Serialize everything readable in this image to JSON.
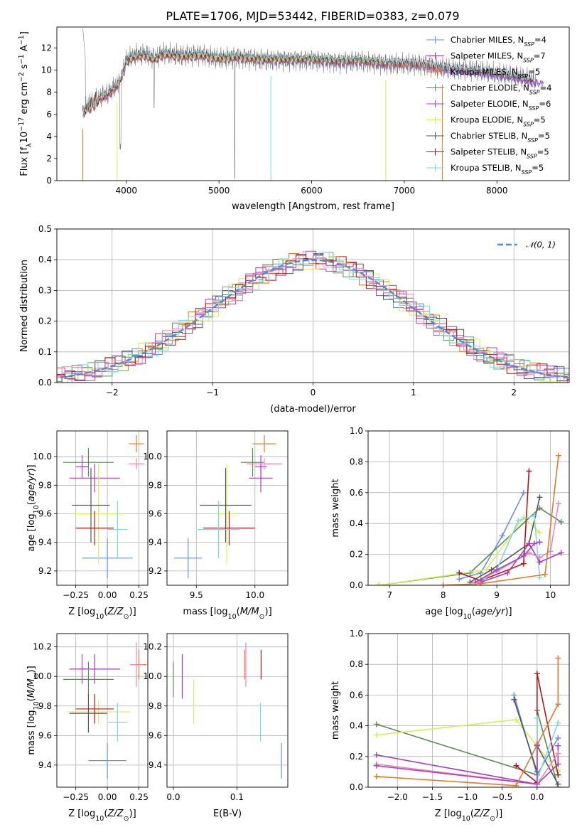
{
  "figure": {
    "title": "PLATE=1706, MJD=53442, FIBERID=0383, z=0.079"
  },
  "palette": {
    "Chabrier MILES": "#6a8fdc",
    "Salpeter MILES": "#a13db3",
    "Kroupa MILES": "#e07b2a",
    "Chabrier ELODIE": "#5a8a5a",
    "Salpeter ELODIE": "#b040c0",
    "Kroupa ELODIE": "#d6ee5a",
    "Chabrier STELIB": "#555555",
    "Salpeter STELIB": "#b01818",
    "Kroupa STELIB": "#80d8e0",
    "pink": "#e888b8",
    "grid": "#b0b0b0",
    "data": "#808080"
  },
  "chart_data": [
    {
      "id": "spectrum",
      "type": "line",
      "xlabel": "wavelength [Angstrom, rest frame]",
      "ylabel": "Flux [f_λ10^-17 erg cm^-2 s^-1 A^-1]",
      "xlim": [
        3250,
        8780
      ],
      "ylim": [
        0,
        13.9
      ],
      "xticks": [
        4000,
        5000,
        6000,
        7000,
        8000
      ],
      "yticks": [
        0,
        2,
        4,
        6,
        8,
        10,
        12
      ],
      "grid": false,
      "legend_position": "top-right",
      "legend": [
        {
          "label": "Chabrier MILES, N",
          "sub": "SSP",
          "tail": "=4"
        },
        {
          "label": "Salpeter MILES, N",
          "sub": "SSP",
          "tail": "=7"
        },
        {
          "label": "Kroupa MILES, N",
          "sub": "SSP",
          "tail": "=5"
        },
        {
          "label": "Chabrier ELODIE, N",
          "sub": "SSP",
          "tail": "=4"
        },
        {
          "label": "Salpeter ELODIE, N",
          "sub": "SSP",
          "tail": "=6"
        },
        {
          "label": "Kroupa ELODIE, N",
          "sub": "SSP",
          "tail": "=5"
        },
        {
          "label": "Chabrier STELIB, N",
          "sub": "SSP",
          "tail": "=5"
        },
        {
          "label": "Salpeter STELIB, N",
          "sub": "SSP",
          "tail": "=5"
        },
        {
          "label": "Kroupa STELIB, N",
          "sub": "SSP",
          "tail": "=5"
        }
      ],
      "series": [
        {
          "name": "Chabrier MILES, NSSP=4",
          "color": "#6a8fdc",
          "range": [
            3700,
            8500
          ]
        },
        {
          "name": "Salpeter MILES, NSSP=7",
          "color": "#a13db3",
          "range": [
            3700,
            8500
          ]
        },
        {
          "name": "Kroupa MILES, NSSP=5",
          "color": "#e07b2a",
          "range": [
            3530,
            7410
          ]
        },
        {
          "name": "Chabrier ELODIE, NSSP=4",
          "color": "#5a8a5a",
          "range": [
            3900,
            6800
          ]
        },
        {
          "name": "Salpeter ELODIE, NSSP=6",
          "color": "#b040c0",
          "range": [
            3900,
            6800
          ]
        },
        {
          "name": "Kroupa ELODIE, NSSP=5",
          "color": "#d6ee5a",
          "range": [
            3900,
            6800
          ]
        },
        {
          "name": "Chabrier STELIB, NSSP=5",
          "color": "#555555",
          "range": [
            3530,
            8400
          ]
        },
        {
          "name": "Salpeter STELIB, NSSP=5",
          "color": "#b01818",
          "range": [
            3530,
            8400
          ]
        },
        {
          "name": "Kroupa STELIB, NSSP=5",
          "color": "#80d8e0",
          "range": [
            3530,
            8400
          ]
        }
      ],
      "spectrum_shape": {
        "x": [
          3530,
          3600,
          3700,
          3800,
          3900,
          3950,
          4000,
          4100,
          4200,
          4300,
          4400,
          4600,
          4800,
          5000,
          5200,
          5500,
          5800,
          6000,
          6300,
          6500,
          6800,
          7000,
          7200,
          7400,
          7600,
          7800,
          8000,
          8200,
          8400
        ],
        "y": [
          6.2,
          6.8,
          7.4,
          7.8,
          8.6,
          9.4,
          10.9,
          11.3,
          11.4,
          11.0,
          11.5,
          11.3,
          11.4,
          11.1,
          11.2,
          11.0,
          11.0,
          11.0,
          10.8,
          10.9,
          10.6,
          10.6,
          10.5,
          10.2,
          10.0,
          9.9,
          9.6,
          9.4,
          9.0
        ]
      }
    },
    {
      "id": "residuals",
      "type": "line",
      "xlabel": "(data-model)/error",
      "ylabel": "Normed distribution",
      "xlim": [
        -2.55,
        2.55
      ],
      "ylim": [
        0,
        0.5
      ],
      "xticks": [
        -2,
        -1,
        0,
        1,
        2
      ],
      "xtick_labels": [
        "−2",
        "−1",
        "0",
        "1",
        "2"
      ],
      "yticks": [
        0,
        0.1,
        0.2,
        0.3,
        0.4,
        0.5
      ],
      "ytick_labels": [
        "0.0",
        "0.1",
        "0.2",
        "0.3",
        "0.4",
        "0.5"
      ],
      "grid": true,
      "legend_position": "top-right",
      "legend": [
        "𝒩(0, 1)"
      ],
      "reference_curve": {
        "name": "𝒩(0, 1)",
        "mean": 0,
        "sigma": 1,
        "color": "#5b86d6"
      },
      "bin_width": 0.1
    },
    {
      "id": "age_vs_Z",
      "type": "scatter",
      "xlabel": "Z [log10(Z/Z⊙)]",
      "ylabel": "age [log10(age/yr)]",
      "xlim": [
        -0.4,
        0.32
      ],
      "ylim": [
        9.1,
        10.18
      ],
      "xticks": [
        -0.25,
        0.0,
        0.25
      ],
      "xtick_labels": [
        "−0.25",
        "0.00",
        "0.25"
      ],
      "yticks": [
        9.2,
        9.4,
        9.6,
        9.8,
        10.0
      ],
      "ytick_labels": [
        "9.2",
        "9.4",
        "9.6",
        "9.8",
        "10.0"
      ],
      "grid": true,
      "errorbars": [
        {
          "color": "#6a8fdc",
          "x": 0.0,
          "xerr": 0.2,
          "y": 9.29,
          "yerr": 0.14
        },
        {
          "color": "#a13db3",
          "x": -0.1,
          "xerr": 0.2,
          "y": 9.85,
          "yerr": 0.1
        },
        {
          "color": "#e07b2a",
          "x": 0.23,
          "xerr": 0.06,
          "y": 10.09,
          "yerr": 0.06
        },
        {
          "color": "#5a8a5a",
          "x": -0.15,
          "xerr": 0.2,
          "y": 9.96,
          "yerr": 0.1
        },
        {
          "color": "#b040c0",
          "x": -0.2,
          "xerr": 0.05,
          "y": 9.93,
          "yerr": 0.08
        },
        {
          "color": "#d6ee5a",
          "x": -0.07,
          "xerr": 0.2,
          "y": 9.6,
          "yerr": 0.35
        },
        {
          "color": "#555555",
          "x": -0.13,
          "xerr": 0.15,
          "y": 9.66,
          "yerr": 0.26
        },
        {
          "color": "#b01818",
          "x": -0.1,
          "xerr": 0.15,
          "y": 9.5,
          "yerr": 0.12
        },
        {
          "color": "#80d8e0",
          "x": 0.08,
          "xerr": 0.08,
          "y": 9.49,
          "yerr": 0.2
        },
        {
          "color": "#e888b8",
          "x": 0.23,
          "xerr": 0.06,
          "y": 9.95,
          "yerr": 0.04
        }
      ]
    },
    {
      "id": "age_vs_mass",
      "type": "scatter",
      "xlabel": "mass [log10(M/M⊙)]",
      "ylabel": "",
      "xlim": [
        9.25,
        10.28
      ],
      "ylim": [
        9.1,
        10.18
      ],
      "xticks": [
        9.5,
        10.0
      ],
      "xtick_labels": [
        "9.5",
        "10.0"
      ],
      "yticks": [
        9.2,
        9.4,
        9.6,
        9.8,
        10.0
      ],
      "ytick_labels": [
        "9.2",
        "9.4",
        "9.6",
        "9.8",
        "10.0"
      ],
      "grid": true,
      "errorbars": [
        {
          "color": "#6a8fdc",
          "x": 9.43,
          "xerr": 0.12,
          "y": 9.29,
          "yerr": 0.14
        },
        {
          "color": "#a13db3",
          "x": 10.05,
          "xerr": 0.1,
          "y": 9.85,
          "yerr": 0.1
        },
        {
          "color": "#e07b2a",
          "x": 10.08,
          "xerr": 0.1,
          "y": 10.09,
          "yerr": 0.06
        },
        {
          "color": "#5a8a5a",
          "x": 9.98,
          "xerr": 0.1,
          "y": 9.96,
          "yerr": 0.1
        },
        {
          "color": "#b040c0",
          "x": 10.05,
          "xerr": 0.05,
          "y": 9.93,
          "yerr": 0.08
        },
        {
          "color": "#d6ee5a",
          "x": 9.76,
          "xerr": 0.08,
          "y": 9.6,
          "yerr": 0.35
        },
        {
          "color": "#555555",
          "x": 9.75,
          "xerr": 0.22,
          "y": 9.66,
          "yerr": 0.26
        },
        {
          "color": "#b01818",
          "x": 9.78,
          "xerr": 0.22,
          "y": 9.5,
          "yerr": 0.12
        },
        {
          "color": "#80d8e0",
          "x": 9.69,
          "xerr": 0.18,
          "y": 9.49,
          "yerr": 0.2
        },
        {
          "color": "#e888b8",
          "x": 10.08,
          "xerr": 0.15,
          "y": 9.95,
          "yerr": 0.04
        }
      ]
    },
    {
      "id": "weight_vs_age",
      "type": "line",
      "xlabel": "age [log10(age/yr)]",
      "ylabel": "mass weight",
      "xlim": [
        6.6,
        10.35
      ],
      "ylim": [
        0,
        1.0
      ],
      "xticks": [
        7,
        8,
        9,
        10
      ],
      "xtick_labels": [
        "7",
        "8",
        "9",
        "10"
      ],
      "yticks": [
        0,
        0.2,
        0.4,
        0.6,
        0.8,
        1.0
      ],
      "ytick_labels": [
        "0.0",
        "0.2",
        "0.4",
        "0.6",
        "0.8",
        "1.0"
      ],
      "grid": true,
      "series": [
        {
          "color": "#6a8fdc",
          "x": [
            8.3,
            8.7,
            9.1,
            9.5
          ],
          "y": [
            0.04,
            0.08,
            0.32,
            0.6
          ]
        },
        {
          "color": "#5a8a5a",
          "x": [
            6.8,
            8.5,
            9.8,
            10.2
          ],
          "y": [
            0.0,
            0.08,
            0.5,
            0.41
          ]
        },
        {
          "color": "#d6ee5a",
          "x": [
            6.8,
            8.8,
            9.5,
            9.8
          ],
          "y": [
            0.0,
            0.1,
            0.44,
            0.34
          ]
        },
        {
          "color": "#555555",
          "x": [
            8.5,
            8.9,
            9.6,
            9.8
          ],
          "y": [
            0.02,
            0.1,
            0.27,
            0.57
          ]
        },
        {
          "color": "#b01818",
          "x": [
            8.3,
            8.7,
            9.5,
            9.6
          ],
          "y": [
            0.08,
            0.03,
            0.14,
            0.74
          ]
        },
        {
          "color": "#80d8e0",
          "x": [
            8.7,
            9.0,
            9.4,
            9.7,
            9.8
          ],
          "y": [
            0.02,
            0.1,
            0.42,
            0.45,
            0.05
          ]
        },
        {
          "color": "#a13db3",
          "x": [
            8.7,
            9.2,
            9.6,
            9.8,
            10.2
          ],
          "y": [
            0.02,
            0.08,
            0.27,
            0.15,
            0.21
          ]
        },
        {
          "color": "#e888b8",
          "x": [
            8.6,
            9.0,
            9.6,
            9.8,
            10.0,
            10.15
          ],
          "y": [
            0.02,
            0.09,
            0.21,
            0.18,
            0.22,
            0.53
          ]
        },
        {
          "color": "#b040c0",
          "x": [
            8.6,
            9.0,
            9.5,
            9.7,
            9.8
          ],
          "y": [
            0.02,
            0.1,
            0.19,
            0.27,
            0.28
          ]
        },
        {
          "color": "#e07b2a",
          "x": [
            8.0,
            8.7,
            9.9,
            10.15
          ],
          "y": [
            0.0,
            0.01,
            0.07,
            0.84
          ]
        }
      ]
    },
    {
      "id": "mass_vs_Z",
      "type": "scatter",
      "xlabel": "Z [log10(Z/Z⊙)]",
      "ylabel": "mass [log10(M/M⊙)]",
      "xlim": [
        -0.4,
        0.32
      ],
      "ylim": [
        9.25,
        10.29
      ],
      "xticks": [
        -0.25,
        0.0,
        0.25
      ],
      "xtick_labels": [
        "−0.25",
        "0.00",
        "0.25"
      ],
      "yticks": [
        9.4,
        9.6,
        9.8,
        10.0,
        10.2
      ],
      "ytick_labels": [
        "9.4",
        "9.6",
        "9.8",
        "10.0",
        "10.2"
      ],
      "grid": true,
      "errorbars": [
        {
          "color": "#6a8fdc",
          "x": 0.0,
          "xerr": 0.15,
          "y": 9.43,
          "yerr": 0.12
        },
        {
          "color": "#a13db3",
          "x": -0.1,
          "xerr": 0.2,
          "y": 10.05,
          "yerr": 0.1
        },
        {
          "color": "#e07b2a",
          "x": 0.25,
          "xerr": 0.06,
          "y": 10.08,
          "yerr": 0.1
        },
        {
          "color": "#5a8a5a",
          "x": -0.15,
          "xerr": 0.2,
          "y": 9.98,
          "yerr": 0.12
        },
        {
          "color": "#b040c0",
          "x": -0.2,
          "xerr": 0.05,
          "y": 10.05,
          "yerr": 0.1
        },
        {
          "color": "#d6ee5a",
          "x": -0.07,
          "xerr": 0.25,
          "y": 9.76,
          "yerr": 0.08
        },
        {
          "color": "#555555",
          "x": -0.15,
          "xerr": 0.15,
          "y": 9.75,
          "yerr": 0.13
        },
        {
          "color": "#b01818",
          "x": -0.1,
          "xerr": 0.15,
          "y": 9.78,
          "yerr": 0.1
        },
        {
          "color": "#80d8e0",
          "x": 0.08,
          "xerr": 0.08,
          "y": 9.69,
          "yerr": 0.13
        },
        {
          "color": "#e888b8",
          "x": 0.23,
          "xerr": 0.05,
          "y": 10.08,
          "yerr": 0.15
        }
      ]
    },
    {
      "id": "mass_vs_EBV",
      "type": "scatter",
      "xlabel": "E(B-V)",
      "ylabel": "",
      "xlim": [
        -0.01,
        0.18
      ],
      "ylim": [
        9.25,
        10.29
      ],
      "xticks": [
        0.0,
        0.1
      ],
      "xtick_labels": [
        "0.0",
        "0.1"
      ],
      "yticks": [
        9.4,
        9.6,
        9.8,
        10.0,
        10.2
      ],
      "ytick_labels": [
        "9.4",
        "9.6",
        "9.8",
        "10.0",
        "10.2"
      ],
      "grid": true,
      "errorbars": [
        {
          "color": "#6a8fdc",
          "x": 0.17,
          "xerr": 0,
          "y": 9.43,
          "yerr": 0.12
        },
        {
          "color": "#a13db3",
          "x": 0.014,
          "xerr": 0,
          "y": 10.0,
          "yerr": 0.15
        },
        {
          "color": "#e07b2a",
          "x": 0.112,
          "xerr": 0,
          "y": 10.08,
          "yerr": 0.1
        },
        {
          "color": "#5a8a5a",
          "x": 0.0,
          "xerr": 0,
          "y": 9.98,
          "yerr": 0.12
        },
        {
          "color": "#d6ee5a",
          "x": 0.032,
          "xerr": 0,
          "y": 9.83,
          "yerr": 0.15
        },
        {
          "color": "#b01818",
          "x": 0.138,
          "xerr": 0,
          "y": 10.08,
          "yerr": 0.1
        },
        {
          "color": "#80d8e0",
          "x": 0.137,
          "xerr": 0,
          "y": 9.69,
          "yerr": 0.13
        },
        {
          "color": "#e888b8",
          "x": 0.114,
          "xerr": 0,
          "y": 10.08,
          "yerr": 0.15
        }
      ]
    },
    {
      "id": "weight_vs_Z",
      "type": "line",
      "xlabel": "Z [log10(Z/Z⊙)]",
      "ylabel": "mass weight",
      "xlim": [
        -2.42,
        0.46
      ],
      "ylim": [
        0,
        1.0
      ],
      "xticks": [
        -2.0,
        -1.5,
        -1.0,
        -0.5,
        0.0
      ],
      "xtick_labels": [
        "−2.0",
        "−1.5",
        "−1.0",
        "−0.5",
        "0.0"
      ],
      "yticks": [
        0,
        0.2,
        0.4,
        0.6,
        0.8,
        1.0
      ],
      "ytick_labels": [
        "0.0",
        "0.2",
        "0.4",
        "0.6",
        "0.8",
        "1.0"
      ],
      "grid": true,
      "series": [
        {
          "color": "#5a8a5a",
          "x": [
            -2.3,
            0.0,
            0.0,
            0.3
          ],
          "y": [
            0.41,
            0.08,
            0.5,
            0.0
          ]
        },
        {
          "color": "#d6ee5a",
          "x": [
            -2.3,
            -0.3,
            0.3,
            0.3
          ],
          "y": [
            0.34,
            0.44,
            0.1,
            0.11
          ]
        },
        {
          "color": "#6a8fdc",
          "x": [
            -0.33,
            0.0,
            0.3
          ],
          "y": [
            0.6,
            0.08,
            0.32
          ]
        },
        {
          "color": "#555555",
          "x": [
            -0.33,
            0.0,
            0.0,
            0.3
          ],
          "y": [
            0.57,
            0.1,
            0.27,
            0.02
          ]
        },
        {
          "color": "#b01818",
          "x": [
            -0.3,
            0.0,
            0.0,
            0.3
          ],
          "y": [
            0.14,
            0.03,
            0.74,
            0.08
          ]
        },
        {
          "color": "#80d8e0",
          "x": [
            0.0,
            0.0,
            0.3
          ],
          "y": [
            0.45,
            0.05,
            0.42
          ]
        },
        {
          "color": "#a13db3",
          "x": [
            -2.3,
            0.0,
            0.3,
            0.3
          ],
          "y": [
            0.21,
            0.02,
            0.15,
            0.27
          ]
        },
        {
          "color": "#e888b8",
          "x": [
            -2.3,
            0.0,
            0.3
          ],
          "y": [
            0.15,
            0.02,
            0.22
          ]
        },
        {
          "color": "#b040c0",
          "x": [
            -2.3,
            0.0,
            0.0
          ],
          "y": [
            0.14,
            0.02,
            0.28
          ]
        },
        {
          "color": "#e07b2a",
          "x": [
            -2.3,
            -0.3,
            0.3,
            0.3
          ],
          "y": [
            0.07,
            0.01,
            0.54,
            0.84
          ]
        }
      ]
    }
  ]
}
